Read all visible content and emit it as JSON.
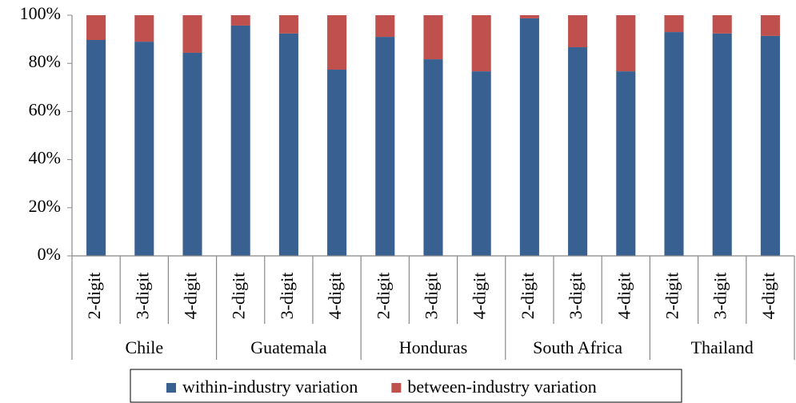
{
  "chart_data": {
    "type": "stacked_bar",
    "categories": [
      "2-digit",
      "3-digit",
      "4-digit",
      "2-digit",
      "3-digit",
      "4-digit",
      "2-digit",
      "3-digit",
      "4-digit",
      "2-digit",
      "3-digit",
      "4-digit",
      "2-digit",
      "3-digit",
      "4-digit"
    ],
    "groups": [
      "Chile",
      "Guatemala",
      "Honduras",
      "South Africa",
      "Thailand"
    ],
    "series": [
      {
        "name": "within-industry variation",
        "color": "#386192",
        "values": [
          89.7,
          89.0,
          84.4,
          95.7,
          92.4,
          77.4,
          91.0,
          81.7,
          76.7,
          98.7,
          86.7,
          76.7,
          93.0,
          92.4,
          91.4
        ]
      },
      {
        "name": "between-industry variation",
        "color": "#c0504d",
        "values": [
          10.3,
          11.0,
          15.6,
          4.3,
          7.6,
          22.6,
          9.0,
          18.3,
          23.3,
          1.3,
          13.3,
          23.3,
          7.0,
          7.6,
          8.6
        ]
      }
    ],
    "ylim": [
      0,
      100
    ],
    "yticks": [
      {
        "value": 0,
        "label": "0%"
      },
      {
        "value": 20,
        "label": "20%"
      },
      {
        "value": 40,
        "label": "40%"
      },
      {
        "value": 60,
        "label": "60%"
      },
      {
        "value": 80,
        "label": "80%"
      },
      {
        "value": 100,
        "label": "100%"
      }
    ],
    "legend": "bottom"
  }
}
